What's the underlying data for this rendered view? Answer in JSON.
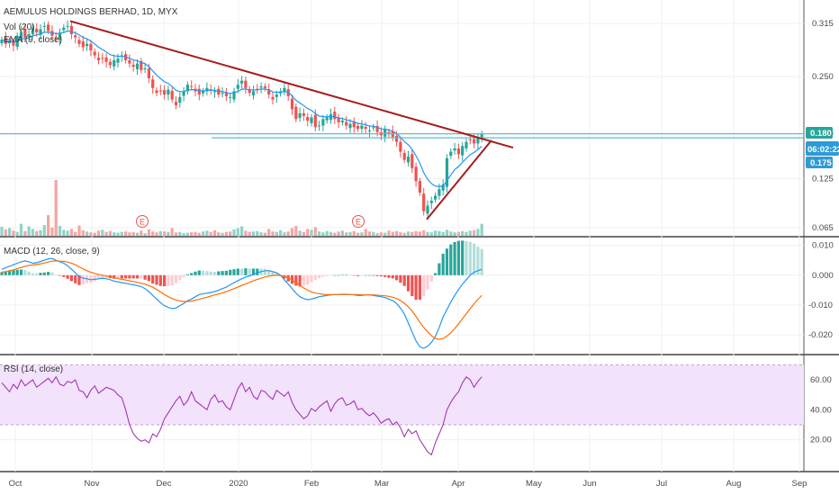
{
  "header": {
    "symbol": "AEMULUS HOLDINGS BERHAD, 1D, MYX",
    "vol_label": "Vol (20)",
    "ema_label": "EMA (9, close)"
  },
  "macd": {
    "label": "MACD (12, 26, close, 9)"
  },
  "rsi": {
    "label": "RSI (14, close)"
  },
  "price_tags": {
    "last": "0.180",
    "countdown": "06:02:22",
    "prev": "0.175"
  },
  "earnings_marker": "E",
  "colors": {
    "up": "#26a69a",
    "down": "#ef5350",
    "ema": "#2196f3",
    "trendline": "#a61c1c",
    "hline": "#5fbcd3",
    "macd_line": "#2196f3",
    "signal_line": "#ff6d00",
    "rsi_line": "#9c27b0",
    "rsi_band": "#f2e2fb",
    "tag": "#26a69a",
    "countdown_tag": "#2f9ad6"
  },
  "chart_data": [
    {
      "type": "candlestick",
      "title": "AEMULUS HOLDINGS BERHAD, 1D, MYX",
      "y_ticks": [
        "0.315",
        "0.250",
        "0.180",
        "0.125",
        "0.065"
      ],
      "x_ticks": [
        "Oct",
        "Nov",
        "Dec",
        "2020",
        "Feb",
        "Mar",
        "Apr",
        "May",
        "Jun",
        "Jul",
        "Aug",
        "Sep"
      ],
      "ylim": [
        0.055,
        0.335
      ],
      "legend": [
        "Vol (20)",
        "EMA (9, close)"
      ],
      "close": [
        0.295,
        0.29,
        0.292,
        0.288,
        0.3,
        0.305,
        0.298,
        0.302,
        0.31,
        0.304,
        0.308,
        0.312,
        0.306,
        0.3,
        0.298,
        0.304,
        0.31,
        0.312,
        0.302,
        0.298,
        0.29,
        0.286,
        0.29,
        0.282,
        0.276,
        0.27,
        0.272,
        0.268,
        0.264,
        0.27,
        0.272,
        0.276,
        0.27,
        0.266,
        0.262,
        0.266,
        0.258,
        0.26,
        0.248,
        0.236,
        0.23,
        0.232,
        0.228,
        0.234,
        0.222,
        0.215,
        0.225,
        0.232,
        0.24,
        0.238,
        0.232,
        0.228,
        0.232,
        0.236,
        0.234,
        0.232,
        0.228,
        0.23,
        0.226,
        0.225,
        0.232,
        0.24,
        0.245,
        0.236,
        0.23,
        0.232,
        0.235,
        0.238,
        0.236,
        0.228,
        0.222,
        0.228,
        0.232,
        0.236,
        0.226,
        0.21,
        0.198,
        0.205,
        0.202,
        0.196,
        0.2,
        0.188,
        0.19,
        0.198,
        0.2,
        0.204,
        0.198,
        0.194,
        0.196,
        0.19,
        0.192,
        0.188,
        0.186,
        0.19,
        0.186,
        0.184,
        0.188,
        0.182,
        0.178,
        0.185,
        0.18,
        0.176,
        0.17,
        0.158,
        0.148,
        0.152,
        0.138,
        0.122,
        0.108,
        0.085,
        0.092,
        0.098,
        0.104,
        0.112,
        0.118,
        0.15,
        0.158,
        0.162,
        0.155,
        0.165,
        0.17,
        0.172,
        0.168,
        0.175,
        0.18
      ],
      "volume": [
        2.1,
        1.5,
        1.8,
        1.2,
        0.9,
        2.8,
        1.1,
        2.2,
        1.6,
        1.1,
        1.3,
        2.5,
        4.8,
        1.9,
        13.0,
        2.3,
        1.4,
        1.2,
        1.6,
        0.9,
        2.4,
        1.3,
        1.0,
        0.8,
        0.7,
        1.2,
        1.4,
        0.9,
        1.1,
        0.8,
        0.7,
        0.9,
        1.0,
        0.8,
        0.9,
        0.7,
        1.2,
        0.6,
        1.5,
        1.0,
        0.8,
        1.1,
        1.0,
        0.9,
        1.8,
        0.8,
        0.9,
        0.6,
        0.7,
        0.8,
        0.9,
        0.7,
        1.0,
        1.2,
        0.9,
        1.3,
        0.8,
        0.7,
        0.9,
        1.0,
        1.5,
        1.8,
        2.2,
        1.2,
        0.9,
        1.0,
        1.1,
        0.8,
        0.7,
        1.6,
        1.0,
        0.9,
        1.3,
        0.8,
        1.0,
        1.8,
        2.3,
        1.2,
        0.9,
        1.6,
        1.4,
        2.0,
        1.0,
        0.8,
        1.1,
        0.9,
        0.7,
        1.0,
        1.2,
        0.8,
        0.9,
        1.1,
        0.7,
        0.8,
        1.6,
        1.0,
        0.9,
        0.6,
        0.8,
        0.7,
        1.2,
        0.9,
        1.1,
        0.8,
        0.7,
        1.0,
        0.9,
        1.1,
        1.0,
        1.3,
        0.9,
        0.8,
        1.2,
        1.1,
        0.9,
        1.4,
        1.0,
        0.8,
        0.9,
        1.1,
        0.9,
        1.2,
        1.3,
        1.6,
        2.8
      ],
      "earnings_dates": [
        "Nov",
        "Feb"
      ],
      "trendlines": [
        {
          "from": [
            "Oct",
            0.318
          ],
          "to": [
            "Apr",
            0.155
          ],
          "color": "#a61c1c"
        },
        {
          "from": [
            "Mar",
            0.075
          ],
          "to": [
            "Apr",
            0.172
          ],
          "color": "#a61c1c"
        }
      ],
      "hlines": [
        0.18,
        0.175
      ]
    },
    {
      "type": "bar+line",
      "title": "MACD (12, 26, close, 9)",
      "y_ticks": [
        "0.010",
        "0.000",
        "-0.010",
        "-0.020"
      ],
      "ylim": [
        -0.026,
        0.012
      ],
      "macd": [
        0.002,
        0.0025,
        0.003,
        0.0035,
        0.004,
        0.0045,
        0.0048,
        0.0045,
        0.004,
        0.0042,
        0.0046,
        0.005,
        0.0055,
        0.0056,
        0.005,
        0.0045,
        0.004,
        0.0032,
        0.002,
        0.0008,
        -0.0005,
        -0.001,
        -0.0012,
        -0.0015,
        -0.0014,
        -0.0012,
        -0.001,
        -0.0012,
        -0.0015,
        -0.002,
        -0.0022,
        -0.0025,
        -0.0027,
        -0.003,
        -0.0032,
        -0.0035,
        -0.0038,
        -0.0045,
        -0.0055,
        -0.0068,
        -0.008,
        -0.0092,
        -0.0102,
        -0.0108,
        -0.0112,
        -0.011,
        -0.0102,
        -0.0095,
        -0.0085,
        -0.008,
        -0.0072,
        -0.0065,
        -0.0062,
        -0.006,
        -0.0058,
        -0.0055,
        -0.005,
        -0.0045,
        -0.004,
        -0.0032,
        -0.0025,
        -0.0018,
        -0.0012,
        -0.0006,
        -0.0002,
        0.0003,
        0.0008,
        0.0012,
        0.0015,
        0.0015,
        0.0012,
        0.0008,
        0.0,
        -0.0015,
        -0.003,
        -0.0045,
        -0.006,
        -0.0072,
        -0.0078,
        -0.0082,
        -0.008,
        -0.0076,
        -0.0072,
        -0.007,
        -0.0068,
        -0.0066,
        -0.0065,
        -0.0065,
        -0.0064,
        -0.0064,
        -0.0065,
        -0.0066,
        -0.0068,
        -0.0068,
        -0.0066,
        -0.0066,
        -0.0068,
        -0.007,
        -0.0072,
        -0.0075,
        -0.008,
        -0.0085,
        -0.0095,
        -0.011,
        -0.013,
        -0.016,
        -0.019,
        -0.022,
        -0.024,
        -0.0245,
        -0.0238,
        -0.0225,
        -0.0205,
        -0.0175,
        -0.014,
        -0.0115,
        -0.009,
        -0.0068,
        -0.0048,
        -0.003,
        -0.0015,
        0.0,
        0.001,
        0.0015,
        0.002
      ],
      "signal": [
        0.001,
        0.0012,
        0.0015,
        0.0018,
        0.0022,
        0.0026,
        0.003,
        0.0033,
        0.0034,
        0.0036,
        0.0038,
        0.0041,
        0.0044,
        0.0047,
        0.0048,
        0.0047,
        0.0046,
        0.0044,
        0.004,
        0.0035,
        0.0028,
        0.0021,
        0.0015,
        0.001,
        0.0006,
        0.0002,
        0.0,
        -0.0003,
        -0.0005,
        -0.0008,
        -0.0011,
        -0.0014,
        -0.0016,
        -0.0019,
        -0.0021,
        -0.0024,
        -0.0027,
        -0.003,
        -0.0035,
        -0.004,
        -0.0048,
        -0.0056,
        -0.0065,
        -0.0072,
        -0.0078,
        -0.0083,
        -0.0086,
        -0.0088,
        -0.0088,
        -0.0087,
        -0.0084,
        -0.0081,
        -0.0077,
        -0.0074,
        -0.007,
        -0.0066,
        -0.0063,
        -0.0059,
        -0.0055,
        -0.005,
        -0.0045,
        -0.004,
        -0.0034,
        -0.0029,
        -0.0024,
        -0.0019,
        -0.0014,
        -0.001,
        -0.0006,
        -0.0003,
        -0.0001,
        0.0,
        -0.0001,
        -0.0004,
        -0.0009,
        -0.0016,
        -0.0025,
        -0.0034,
        -0.0043,
        -0.005,
        -0.0056,
        -0.006,
        -0.0062,
        -0.0064,
        -0.0065,
        -0.0065,
        -0.0065,
        -0.0065,
        -0.0065,
        -0.0065,
        -0.0065,
        -0.0065,
        -0.0065,
        -0.0066,
        -0.0066,
        -0.0066,
        -0.0066,
        -0.0067,
        -0.0068,
        -0.0069,
        -0.0071,
        -0.0074,
        -0.0078,
        -0.0085,
        -0.0094,
        -0.0106,
        -0.012,
        -0.0138,
        -0.0158,
        -0.0175,
        -0.019,
        -0.0203,
        -0.0212,
        -0.0215,
        -0.0212,
        -0.0204,
        -0.0193,
        -0.0179,
        -0.0163,
        -0.0146,
        -0.0129,
        -0.0112,
        -0.0096,
        -0.0081,
        -0.0068
      ]
    },
    {
      "type": "line",
      "title": "RSI (14, close)",
      "y_ticks": [
        "60.00",
        "40.00",
        "20.00"
      ],
      "ylim": [
        0,
        75
      ],
      "band": [
        30,
        70
      ],
      "values": [
        58,
        55,
        52,
        57,
        54,
        60,
        56,
        58,
        60,
        55,
        57,
        59,
        61,
        58,
        62,
        57,
        56,
        59,
        58,
        60,
        53,
        52,
        48,
        53,
        56,
        51,
        53,
        55,
        54,
        53,
        50,
        48,
        40,
        30,
        24,
        21,
        19,
        20,
        18,
        24,
        22,
        27,
        34,
        38,
        42,
        46,
        49,
        43,
        46,
        52,
        46,
        44,
        42,
        40,
        47,
        50,
        45,
        46,
        42,
        40,
        47,
        54,
        58,
        52,
        55,
        49,
        47,
        53,
        52,
        49,
        47,
        53,
        51,
        49,
        52,
        45,
        40,
        37,
        34,
        36,
        41,
        39,
        42,
        44,
        46,
        39,
        44,
        47,
        48,
        43,
        44,
        46,
        40,
        41,
        38,
        36,
        38,
        35,
        31,
        33,
        34,
        30,
        32,
        28,
        22,
        27,
        24,
        26,
        20,
        16,
        12,
        10,
        18,
        24,
        30,
        40,
        45,
        49,
        52,
        58,
        62,
        60,
        55,
        59,
        62
      ]
    }
  ]
}
